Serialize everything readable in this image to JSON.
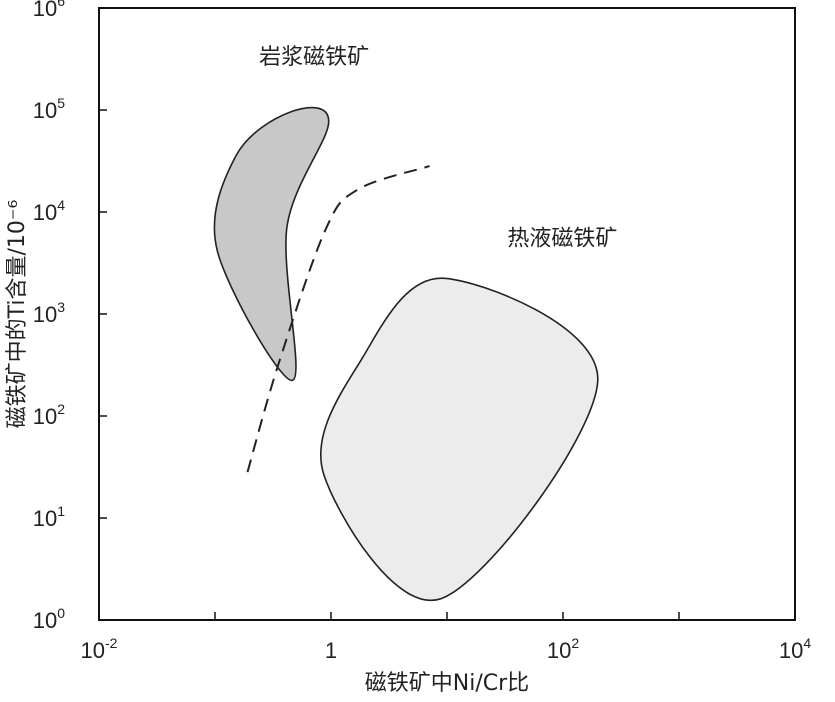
{
  "chart_data": {
    "type": "scatter",
    "x_scale": "log10",
    "y_scale": "log10",
    "xlim_exp": [
      -2,
      4
    ],
    "ylim_exp": [
      0,
      6
    ],
    "x_ticks": [
      {
        "base": "10",
        "exp": "-2",
        "value_exp": -2
      },
      {
        "base": "1",
        "exp": "",
        "value_exp": 0
      },
      {
        "base": "10",
        "exp": "2",
        "value_exp": 2
      },
      {
        "base": "10",
        "exp": "4",
        "value_exp": 4
      }
    ],
    "y_ticks": [
      {
        "base": "10",
        "exp": "0",
        "value_exp": 0
      },
      {
        "base": "10",
        "exp": "1",
        "value_exp": 1
      },
      {
        "base": "10",
        "exp": "2",
        "value_exp": 2
      },
      {
        "base": "10",
        "exp": "3",
        "value_exp": 3
      },
      {
        "base": "10",
        "exp": "4",
        "value_exp": 4
      },
      {
        "base": "10",
        "exp": "5",
        "value_exp": 5
      },
      {
        "base": "10",
        "exp": "6",
        "value_exp": 6
      }
    ],
    "xlabel": "磁铁矿中Ni/Cr比",
    "ylabel": "磁铁矿中的Ti含量/10⁻⁶",
    "grid": false,
    "regions": [
      {
        "label": "岩浆磁铁矿",
        "fill": "#c8c8c8",
        "label_pos": {
          "x_exp": -0.62,
          "y_exp": 5.45
        },
        "outline": [
          {
            "x_exp": -0.35,
            "y_exp": 4.98
          },
          {
            "x_exp": -0.02,
            "y_exp": 4.88
          },
          {
            "x_exp": -0.38,
            "y_exp": 3.85
          },
          {
            "x_exp": -0.33,
            "y_exp": 2.35
          },
          {
            "x_exp": -0.98,
            "y_exp": 3.62
          },
          {
            "x_exp": -0.82,
            "y_exp": 4.55
          }
        ]
      },
      {
        "label": "热液磁铁矿",
        "fill": "#ececec",
        "label_pos": {
          "x_exp": 1.52,
          "y_exp": 3.67
        },
        "outline": [
          {
            "x_exp": 0.98,
            "y_exp": 3.35
          },
          {
            "x_exp": 2.3,
            "y_exp": 2.36
          },
          {
            "x_exp": 0.95,
            "y_exp": 0.21
          },
          {
            "x_exp": -0.06,
            "y_exp": 1.42
          },
          {
            "x_exp": 0.26,
            "y_exp": 2.55
          }
        ]
      }
    ],
    "boundary_line": {
      "style": "dashed",
      "points": [
        {
          "x_exp": -0.72,
          "y_exp": 1.45
        },
        {
          "x_exp": -0.45,
          "y_exp": 2.52
        },
        {
          "x_exp": -0.05,
          "y_exp": 3.82
        },
        {
          "x_exp": 0.23,
          "y_exp": 4.22
        },
        {
          "x_exp": 0.85,
          "y_exp": 4.45
        }
      ]
    }
  }
}
